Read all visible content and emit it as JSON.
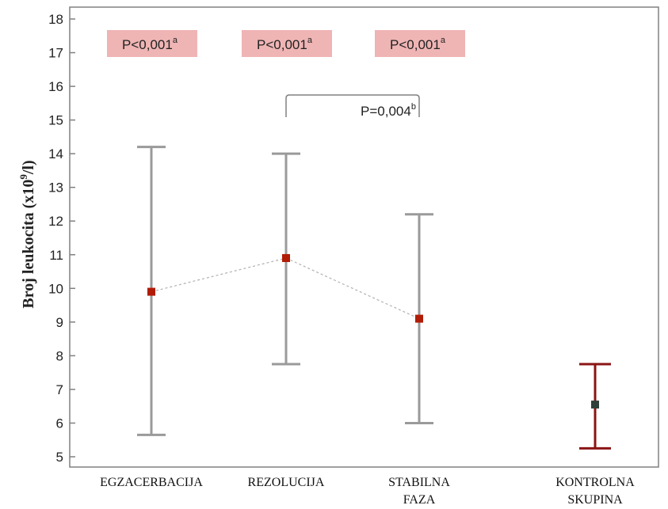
{
  "chart_data": {
    "type": "errorbar",
    "ylabel": {
      "main": "Broj leukocita (x10",
      "sup": "9",
      "tail": "/l)"
    },
    "ylim": [
      5,
      18
    ],
    "yticks": [
      5,
      6,
      7,
      8,
      9,
      10,
      11,
      12,
      13,
      14,
      15,
      16,
      17,
      18
    ],
    "categories": [
      {
        "lines": [
          "EGZACERBACIJA"
        ]
      },
      {
        "lines": [
          "REZOLUCIJA"
        ]
      },
      {
        "lines": [
          "STABILNA",
          "FAZA"
        ]
      },
      {
        "lines": [
          "KONTROLNA",
          "SKUPINA"
        ]
      }
    ],
    "points": [
      {
        "value": 9.9,
        "low": 5.65,
        "high": 14.2,
        "group": "patients"
      },
      {
        "value": 10.9,
        "low": 7.75,
        "high": 14.0,
        "group": "patients"
      },
      {
        "value": 9.1,
        "low": 6.0,
        "high": 12.2,
        "group": "patients"
      },
      {
        "value": 6.55,
        "low": 5.25,
        "high": 7.75,
        "group": "control"
      }
    ],
    "connect_patients": true,
    "annotations": [
      {
        "category": 0,
        "text": "P<0,001",
        "sup": "a"
      },
      {
        "category": 1,
        "text": "P<0,001",
        "sup": "a"
      },
      {
        "category": 2,
        "text": "P<0,001",
        "sup": "a"
      }
    ],
    "bracket": {
      "from": 1,
      "to": 2,
      "text": "P=0,004",
      "sup": "b"
    },
    "colors": {
      "errorbar_patients": "#9a9a9a",
      "errorbar_control": "#8b1414",
      "marker_patients": "#b01c06",
      "marker_control": "#2f3f3a",
      "annotation_box": "#efb4b4",
      "connector": "#b0b0b0"
    }
  }
}
